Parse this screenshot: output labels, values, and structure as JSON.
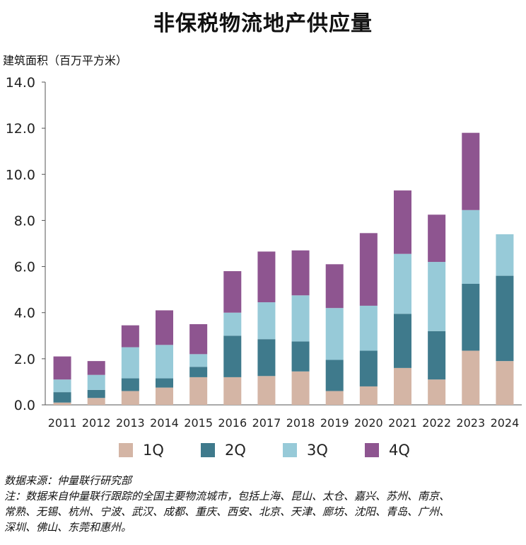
{
  "title": "非保税物流地产供应量",
  "chart_data": {
    "type": "bar",
    "stacked": true,
    "title": "非保税物流地产供应量",
    "ylabel": "建筑面积（百万平方米）",
    "xlabel": "",
    "ylim": [
      0,
      14
    ],
    "yticks": [
      "0.0",
      "2.0",
      "4.0",
      "6.0",
      "8.0",
      "10.0",
      "12.0",
      "14.0"
    ],
    "ytick_values": [
      0,
      2,
      4,
      6,
      8,
      10,
      12,
      14
    ],
    "categories": [
      "2011",
      "2012",
      "2013",
      "2014",
      "2015",
      "2016",
      "2017",
      "2018",
      "2019",
      "2020",
      "2021",
      "2022",
      "2023",
      "2024"
    ],
    "series": [
      {
        "name": "1Q",
        "color": "#d4b5a5",
        "values": [
          0.1,
          0.3,
          0.6,
          0.75,
          1.2,
          1.2,
          1.25,
          1.45,
          0.6,
          0.8,
          1.6,
          1.1,
          2.35,
          1.9
        ]
      },
      {
        "name": "2Q",
        "color": "#3f7a8c",
        "values": [
          0.45,
          0.35,
          0.55,
          0.4,
          0.45,
          1.8,
          1.6,
          1.3,
          1.35,
          1.55,
          2.35,
          2.1,
          2.9,
          3.7
        ]
      },
      {
        "name": "3Q",
        "color": "#97cad8",
        "values": [
          0.55,
          0.65,
          1.35,
          1.45,
          0.55,
          1.0,
          1.6,
          2.0,
          2.25,
          1.95,
          2.6,
          3.0,
          3.2,
          1.8
        ]
      },
      {
        "name": "4Q",
        "color": "#8e5590",
        "values": [
          1.0,
          0.6,
          0.95,
          1.5,
          1.3,
          1.8,
          2.2,
          1.95,
          1.9,
          3.15,
          2.75,
          2.05,
          3.35,
          0
        ]
      }
    ],
    "legend_position": "bottom",
    "grid": false
  },
  "footnote": {
    "source": "数据来源：仲量联行研究部",
    "note_lines": [
      "注：数据来自仲量联行跟踪的全国主要物流城市，包括上海、昆山、太仓、嘉兴、苏州、南京、",
      "常熟、无锡、杭州、宁波、武汉、成都、重庆、西安、北京、天津、廊坊、沈阳、青岛、广州、",
      "深圳、佛山、东莞和惠州。"
    ]
  }
}
